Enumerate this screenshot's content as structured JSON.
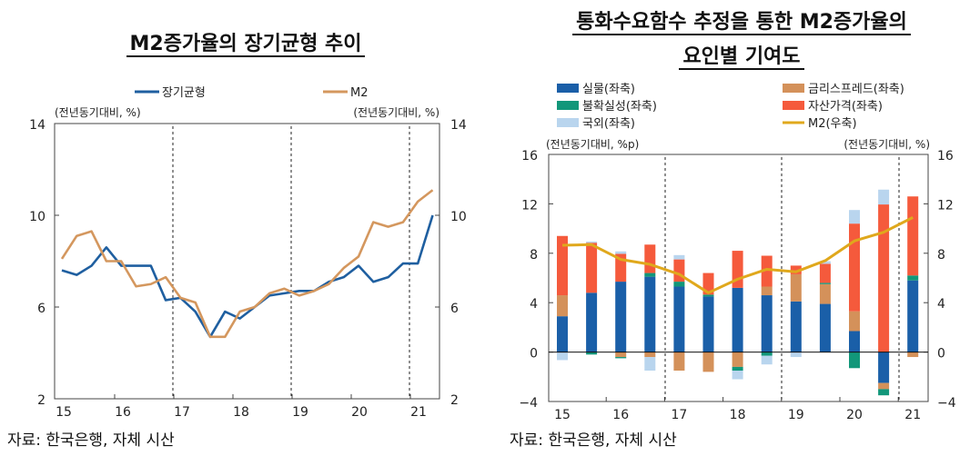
{
  "titles": {
    "left": "M2증가율의 장기균형 추이",
    "right_line1": "통화수요함수 추정을 통한 M2증가율의",
    "right_line2": "요인별 기여도"
  },
  "source_left": "자료: 한국은행, 자체 시산",
  "source_right": "자료: 한국은행, 자체 시산",
  "chart_data": [
    {
      "type": "line",
      "title": "M2증가율의 장기균형 추이",
      "ylabel_left": "(전년동기대비, %)",
      "ylabel_right": "(전년동기대비, %)",
      "ylim": [
        2,
        14
      ],
      "yticks": [
        2,
        6,
        10,
        14
      ],
      "xtick_labels": [
        "15",
        "16",
        "17",
        "18",
        "19",
        "20",
        "21"
      ],
      "x": [
        "15Q1",
        "15Q2",
        "15Q3",
        "15Q4",
        "16Q1",
        "16Q2",
        "16Q3",
        "16Q4",
        "17Q1",
        "17Q2",
        "17Q3",
        "17Q4",
        "18Q1",
        "18Q2",
        "18Q3",
        "18Q4",
        "19Q1",
        "19Q2",
        "19Q3",
        "19Q4",
        "20Q1",
        "20Q2",
        "20Q3",
        "20Q4",
        "21Q1",
        "21Q2"
      ],
      "dashed_lines_at": [
        "16Q4",
        "18Q4",
        "20Q4"
      ],
      "legend": "top",
      "series": [
        {
          "name": "장기균형",
          "color": "#1f5fa0",
          "values": [
            7.6,
            7.4,
            7.8,
            8.6,
            7.8,
            7.8,
            7.8,
            6.3,
            6.4,
            5.8,
            4.7,
            5.8,
            5.5,
            6.0,
            6.5,
            6.6,
            6.7,
            6.7,
            7.1,
            7.3,
            7.8,
            7.1,
            7.3,
            7.9,
            7.9,
            10.0
          ]
        },
        {
          "name": "M2",
          "color": "#d4975e",
          "values": [
            8.1,
            9.1,
            9.3,
            8.0,
            8.0,
            6.9,
            7.0,
            7.3,
            6.4,
            6.2,
            4.7,
            4.7,
            5.8,
            6.0,
            6.6,
            6.8,
            6.5,
            6.7,
            7.0,
            7.7,
            8.2,
            9.7,
            9.5,
            9.7,
            10.6,
            11.1
          ]
        }
      ]
    },
    {
      "type": "bar",
      "stacked": true,
      "title": "통화수요함수 추정을 통한 M2증가율의 요인별 기여도",
      "ylabel_left": "(전년동기대비, %p)",
      "ylabel_right": "(전년동기대비, %)",
      "ylim": [
        -4,
        16
      ],
      "yticks": [
        -4,
        0,
        4,
        8,
        12,
        16
      ],
      "xtick_labels": [
        "15",
        "16",
        "17",
        "18",
        "19",
        "20",
        "21"
      ],
      "categories": [
        "15H1",
        "15H2",
        "16H1",
        "16H2",
        "17H1",
        "17H2",
        "18H1",
        "18H2",
        "19H1",
        "19H2",
        "20H1",
        "20H2",
        "21H1"
      ],
      "dashed_lines_after": [
        "16H2",
        "18H2",
        "20H2"
      ],
      "legend": "top",
      "series": [
        {
          "name": "실물(좌축)",
          "color": "#1a5fa8",
          "values": [
            2.9,
            4.8,
            5.7,
            6.1,
            5.3,
            4.5,
            5.2,
            4.6,
            4.1,
            3.9,
            1.7,
            -2.5,
            5.8
          ]
        },
        {
          "name": "금리스프레드(좌축)",
          "color": "#d4915a",
          "values": [
            1.7,
            0,
            -0.4,
            -0.4,
            -1.5,
            -1.6,
            -1.2,
            0.7,
            2.2,
            1.6,
            1.6,
            -0.5,
            -0.4
          ]
        },
        {
          "name": "불확실성(좌축)",
          "color": "#12977a",
          "values": [
            0,
            -0.2,
            -0.1,
            0.3,
            0.4,
            0.15,
            -0.3,
            -0.3,
            0,
            0.1,
            -1.3,
            -0.5,
            0.4
          ]
        },
        {
          "name": "자산가격(좌축)",
          "color": "#f55a3c",
          "values": [
            4.8,
            4.05,
            2.25,
            2.3,
            1.8,
            1.75,
            3.0,
            2.5,
            0.7,
            1.55,
            7.1,
            11.95,
            6.4
          ]
        },
        {
          "name": "국외(좌축)",
          "color": "#b9d5ee",
          "values": [
            -0.65,
            0.1,
            0.2,
            -1.1,
            0.35,
            0,
            -0.7,
            -0.7,
            -0.4,
            0.2,
            1.1,
            1.2,
            0
          ]
        },
        {
          "name": "M2(우축)",
          "color": "#e0a81c",
          "type": "line",
          "values": [
            8.65,
            8.7,
            7.5,
            7.1,
            6.3,
            4.8,
            5.9,
            6.7,
            6.5,
            7.4,
            9.0,
            9.7,
            10.9
          ]
        }
      ]
    }
  ]
}
